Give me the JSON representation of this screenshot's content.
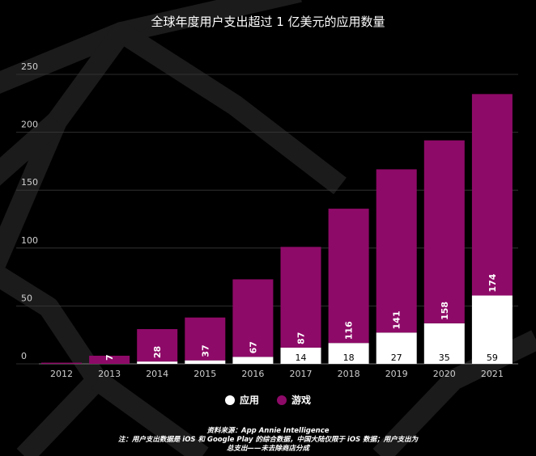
{
  "colors": {
    "background": "#000000",
    "app": "#ffffff",
    "game": "#8e0a68",
    "grid": "#3a3a3a",
    "axis_text": "#cfcfcf"
  },
  "chart_data": {
    "type": "bar",
    "stacked": true,
    "title": "全球年度用户支出超过 1 亿美元的应用数量",
    "categories": [
      "2012",
      "2013",
      "2014",
      "2015",
      "2016",
      "2017",
      "2018",
      "2019",
      "2020",
      "2021"
    ],
    "series": [
      {
        "name": "应用",
        "color": "#ffffff",
        "values": [
          0,
          0,
          2,
          3,
          6,
          14,
          18,
          27,
          35,
          59
        ],
        "labels": [
          "",
          "",
          "",
          "",
          "",
          "14",
          "18",
          "27",
          "35",
          "59"
        ]
      },
      {
        "name": "游戏",
        "color": "#8e0a68",
        "values": [
          1,
          7,
          28,
          37,
          67,
          87,
          116,
          141,
          158,
          174
        ],
        "labels": [
          "",
          "7",
          "28",
          "37",
          "67",
          "87",
          "116",
          "141",
          "158",
          "174"
        ]
      }
    ],
    "yticks": [
      "0",
      "50",
      "100",
      "150",
      "200",
      "250"
    ],
    "ylim": [
      0,
      250
    ],
    "grid": true,
    "legend": "bottom-center"
  },
  "footer": {
    "source": "资料来源：App Annie Intelligence",
    "note1": "注：用户支出数据是 iOS 和 Google Play 的综合数据，中国大陆仅限于 iOS 数据；用户支出为",
    "note2": "总支出——未去除商店分成"
  }
}
